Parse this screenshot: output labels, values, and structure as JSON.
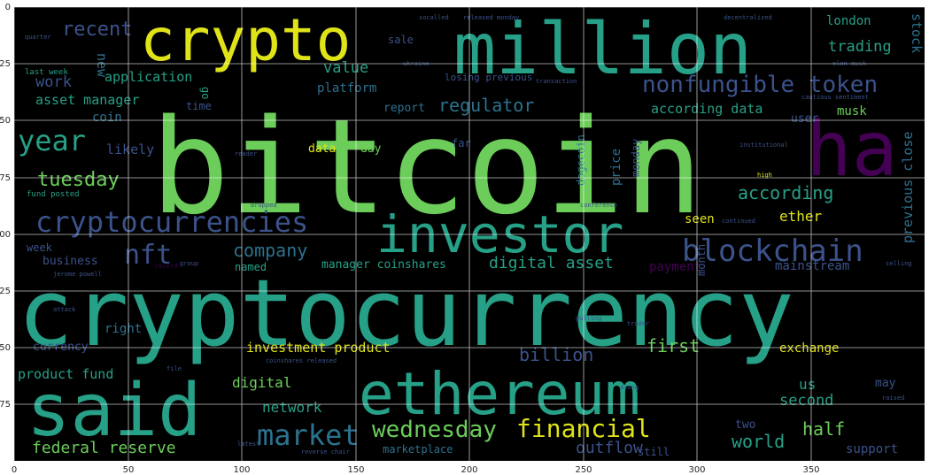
{
  "axes": {
    "x_ticks": [
      "0",
      "50",
      "100",
      "150",
      "200",
      "250",
      "300",
      "350"
    ],
    "y_ticks": [
      "0",
      "25",
      "50",
      "75",
      "100",
      "125",
      "150",
      "175"
    ],
    "xlim": [
      0,
      400
    ],
    "ylim": [
      200,
      0
    ],
    "grid": true
  },
  "colors": {
    "background": "#000000",
    "grid": "#ffffff",
    "teal": "#26a087",
    "green": "#6ccd5a",
    "yellow": "#dfe318",
    "purple": "#440154",
    "indigo": "#3b528b",
    "blue": "#2c728e"
  },
  "words": {
    "bitcoin": "bitcoin",
    "cryptocurrency": "cryptocurrency",
    "million": "million",
    "crypto": "crypto",
    "ha": "ha",
    "investor": "investor",
    "ethereum": "ethereum",
    "said": "said",
    "cryptocurrencies": "cryptocurrencies",
    "blockchain": "blockchain",
    "nonfungible_token": "nonfungible token",
    "market": "market",
    "financial": "financial",
    "wednesday": "wednesday",
    "year": "year",
    "tuesday": "tuesday",
    "nft": "nft",
    "recent": "recent",
    "regulator": "regulator",
    "company": "company",
    "digital_asset": "digital asset",
    "federal_reserve": "federal reserve",
    "outflow": "outflow",
    "world": "world",
    "half": "half",
    "first": "first",
    "billion": "billion",
    "according": "according",
    "according_data": "according data",
    "trading": "trading",
    "london": "london",
    "stock": "stock",
    "previous_close": "previous close",
    "value": "value",
    "application": "application",
    "platform": "platform",
    "sale": "sale",
    "work": "work",
    "new": "new",
    "asset_manager": "asset manager",
    "coin": "coin",
    "likely": "likely",
    "report": "report",
    "musk": "musk",
    "user": "user",
    "data": "data",
    "day": "day",
    "ether": "ether",
    "seen": "seen",
    "payment": "payment",
    "mainstream": "mainstream",
    "manager_coinshares": "manager coinshares",
    "named": "named",
    "business": "business",
    "week": "week",
    "investment_product": "investment product",
    "exchange": "exchange",
    "product_fund": "product fund",
    "digital": "digital",
    "network": "network",
    "second": "second",
    "us": "us",
    "may": "may",
    "two": "two",
    "support": "support",
    "marketplace": "marketplace",
    "still": "still",
    "right": "right",
    "currency": "currency",
    "price": "price",
    "dogecoin": "dogecoin",
    "monday": "monday",
    "month": "month",
    "last_week": "last week",
    "fund_posted": "fund posted",
    "losing_previous": "losing previous",
    "time": "time",
    "far": "far",
    "go": "go",
    "quarter": "quarter",
    "socalled": "socalled",
    "released_monday": "released monday",
    "decentralized": "decentralized",
    "jerome_powell": "jerome powell",
    "attack": "attack",
    "coinshares_released": "coinshares released",
    "reverse_chair": "reverse chair",
    "conference": "conference",
    "institutional": "institutional",
    "high": "high",
    "continued": "continued",
    "selling": "selling",
    "trader": "trader",
    "raised": "raised",
    "along": "along",
    "group": "group",
    "record": "record",
    "transaction": "transaction",
    "elon_musk": "elon musk",
    "cautious_sentiment": "cautious sentiment",
    "dropped": "dropped",
    "reader": "reader",
    "ukraine": "ukraine",
    "pulling": "pulling",
    "latest": "latest",
    "file": "file"
  }
}
